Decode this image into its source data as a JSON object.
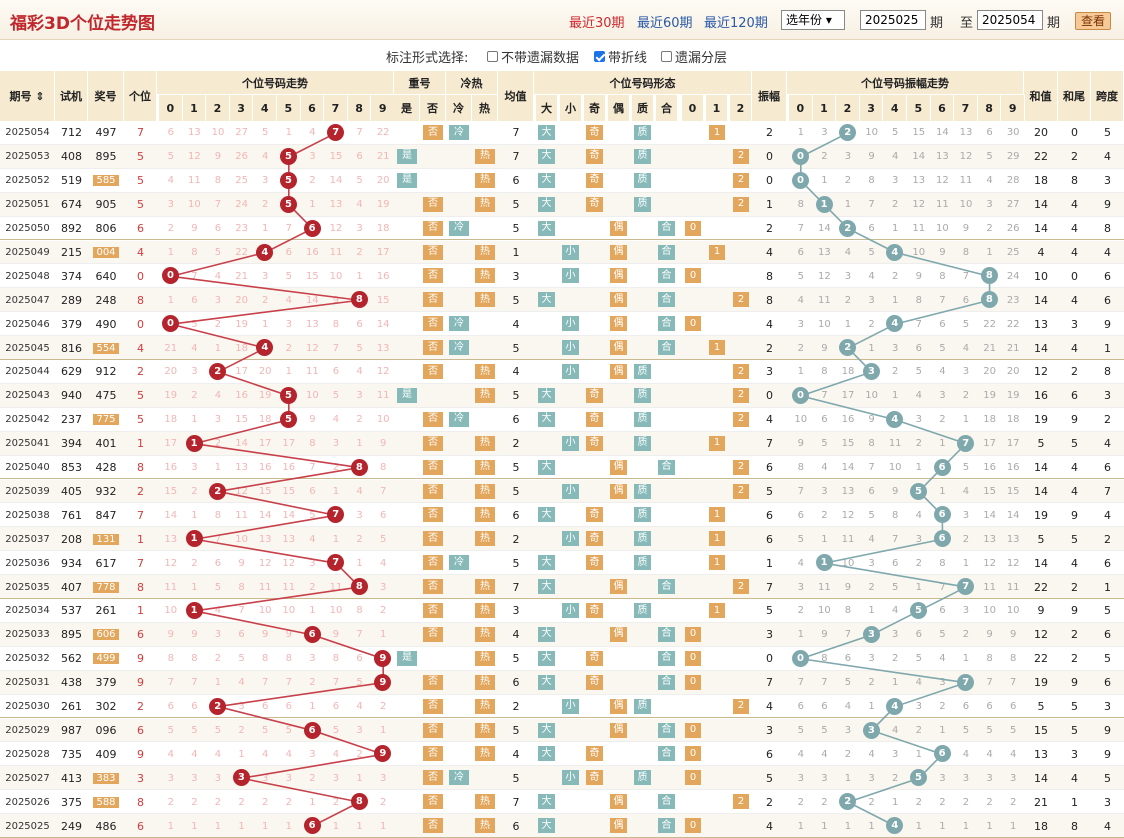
{
  "title": "福彩3D个位走势图",
  "nav": [
    "最近30期",
    "最近60期",
    "最近120期"
  ],
  "year_select": "选年份",
  "range": {
    "from": "2025025",
    "to": "2025054",
    "label_period": "期",
    "label_to": "至"
  },
  "query_btn": "查看",
  "options": {
    "label": "标注形式选择:",
    "items": [
      {
        "text": "不带遗漏数据",
        "checked": false
      },
      {
        "text": "带折线",
        "checked": true
      },
      {
        "text": "遗漏分层",
        "checked": false
      }
    ]
  },
  "headers": {
    "issue": "期号",
    "trial": "试机",
    "prize": "奖号",
    "unit": "个位",
    "trend": "个位号码走势",
    "repeat": "重号",
    "repeat_sub": [
      "是",
      "否"
    ],
    "hotcold": "冷热",
    "hotcold_sub": [
      "冷",
      "热"
    ],
    "avg": "均值",
    "form": "个位号码形态",
    "form_sub": [
      "大",
      "小",
      "奇",
      "偶",
      "质",
      "合",
      "0",
      "1",
      "2"
    ],
    "amp": "振幅",
    "amptrend": "个位号码振幅走势",
    "sum": "和值",
    "tail": "和尾",
    "span": "跨度",
    "digits": [
      "0",
      "1",
      "2",
      "3",
      "4",
      "5",
      "6",
      "7",
      "8",
      "9"
    ]
  },
  "chart_data": {
    "type": "line",
    "x": [
      "2025054",
      "2025053",
      "2025052",
      "2025051",
      "2025050",
      "2025049",
      "2025048",
      "2025047",
      "2025046",
      "2025045",
      "2025044",
      "2025043",
      "2025042",
      "2025041",
      "2025040",
      "2025039",
      "2025038",
      "2025037",
      "2025036",
      "2025035",
      "2025034",
      "2025033",
      "2025032",
      "2025031",
      "2025030",
      "2025029",
      "2025028",
      "2025027",
      "2025026",
      "2025025"
    ],
    "trial": [
      "712",
      "408",
      "519",
      "674",
      "892",
      "215",
      "374",
      "289",
      "379",
      "816",
      "629",
      "940",
      "237",
      "394",
      "853",
      "405",
      "761",
      "208",
      "934",
      "407",
      "537",
      "895",
      "562",
      "438",
      "261",
      "987",
      "735",
      "413",
      "375",
      "249"
    ],
    "prize": [
      "497",
      "895",
      "585",
      "905",
      "806",
      "004",
      "640",
      "248",
      "490",
      "554",
      "912",
      "475",
      "775",
      "401",
      "428",
      "932",
      "847",
      "131",
      "617",
      "778",
      "261",
      "606",
      "499",
      "379",
      "302",
      "096",
      "409",
      "383",
      "588",
      "486"
    ],
    "unit": [
      7,
      5,
      5,
      5,
      6,
      4,
      0,
      8,
      0,
      4,
      2,
      5,
      5,
      1,
      8,
      2,
      7,
      1,
      7,
      8,
      1,
      6,
      9,
      9,
      2,
      6,
      9,
      3,
      8,
      6
    ],
    "amp": [
      2,
      0,
      0,
      1,
      2,
      4,
      8,
      8,
      4,
      2,
      3,
      0,
      4,
      7,
      6,
      5,
      6,
      6,
      1,
      7,
      5,
      3,
      0,
      7,
      4,
      3,
      6,
      5,
      2,
      4
    ],
    "avg": [
      7,
      7,
      6,
      5,
      5,
      1,
      3,
      5,
      4,
      5,
      4,
      5,
      6,
      2,
      5,
      5,
      6,
      2,
      5,
      7,
      3,
      4,
      5,
      6,
      2,
      5,
      4,
      5,
      7,
      6
    ],
    "sum": [
      20,
      22,
      18,
      14,
      14,
      4,
      10,
      14,
      13,
      14,
      12,
      16,
      19,
      5,
      14,
      14,
      19,
      5,
      14,
      22,
      9,
      12,
      22,
      19,
      5,
      15,
      13,
      14,
      21,
      18
    ],
    "tail": [
      0,
      2,
      8,
      4,
      4,
      4,
      0,
      4,
      3,
      4,
      2,
      6,
      9,
      5,
      4,
      4,
      9,
      5,
      4,
      2,
      9,
      2,
      2,
      9,
      5,
      5,
      3,
      4,
      1,
      8
    ],
    "span": [
      5,
      4,
      3,
      9,
      8,
      4,
      6,
      6,
      9,
      1,
      8,
      3,
      2,
      4,
      6,
      7,
      4,
      2,
      6,
      1,
      5,
      6,
      5,
      6,
      3,
      9,
      9,
      5,
      3,
      4
    ],
    "repeat": [
      "否",
      "是",
      "是",
      "否",
      "否",
      "否",
      "否",
      "否",
      "否",
      "否",
      "否",
      "是",
      "否",
      "否",
      "否",
      "否",
      "否",
      "否",
      "否",
      "否",
      "否",
      "否",
      "是",
      "否",
      "否",
      "否",
      "否",
      "否",
      "否",
      "否"
    ],
    "hotcold": [
      "冷",
      "热",
      "热",
      "热",
      "冷",
      "热",
      "热",
      "热",
      "冷",
      "冷",
      "热",
      "热",
      "冷",
      "热",
      "热",
      "热",
      "热",
      "热",
      "冷",
      "热",
      "热",
      "热",
      "热",
      "热",
      "热",
      "热",
      "热",
      "冷",
      "热",
      "热"
    ]
  },
  "colors": {
    "accent": "#c0282d",
    "line_unit": "#c8404a",
    "line_amp": "#7fa8ad",
    "tag_teal": "#87b9b9",
    "tag_orange": "#e2a65c",
    "header": "#f6ead1"
  }
}
